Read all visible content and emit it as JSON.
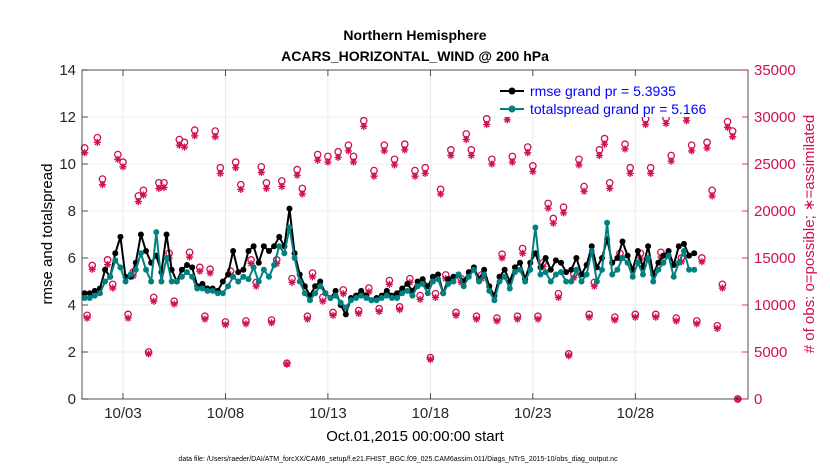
{
  "colors": {
    "rmse": "#000000",
    "spread": "#008080",
    "obs": "#d0104e",
    "legend_text": "#0000ff",
    "grid": "#e6e6e6",
    "axis": "#262626"
  },
  "chart_data": {
    "type": "line",
    "title": "Northern Hemisphere",
    "subtitle": "ACARS_HORIZONTAL_WIND @ 200 hPa",
    "xlabel": "Oct.01,2015 00:00:00 start",
    "ylabel_left": "rmse and totalspread",
    "ylabel_right": "# of obs: o=possible; ∗=assimilated",
    "footnote": "data file: /Users/raeder/DAI/ATM_forcXX/CAM6_setup/f.e21.FHIST_BGC.f09_025.CAM6assim.011/Diags_NTrS_2015-10/obs_diag_output.nc",
    "xlim": [
      0,
      32.5
    ],
    "ylim_left": [
      0,
      14
    ],
    "ylim_right": [
      0,
      35000
    ],
    "x_ticks": [
      {
        "x": 2,
        "label": "10/03"
      },
      {
        "x": 7,
        "label": "10/08"
      },
      {
        "x": 12,
        "label": "10/13"
      },
      {
        "x": 17,
        "label": "10/18"
      },
      {
        "x": 22,
        "label": "10/23"
      },
      {
        "x": 27,
        "label": "10/28"
      }
    ],
    "y_ticks_left": [
      {
        "v": 0,
        "label": "0"
      },
      {
        "v": 2,
        "label": "2"
      },
      {
        "v": 4,
        "label": "4"
      },
      {
        "v": 6,
        "label": "6"
      },
      {
        "v": 8,
        "label": "8"
      },
      {
        "v": 10,
        "label": "10"
      },
      {
        "v": 12,
        "label": "12"
      },
      {
        "v": 14,
        "label": "14"
      }
    ],
    "y_ticks_right": [
      {
        "v": 0,
        "label": "0"
      },
      {
        "v": 5000,
        "label": "5000"
      },
      {
        "v": 10000,
        "label": "10000"
      },
      {
        "v": 15000,
        "label": "15000"
      },
      {
        "v": 20000,
        "label": "20000"
      },
      {
        "v": 25000,
        "label": "25000"
      },
      {
        "v": 30000,
        "label": "30000"
      },
      {
        "v": 35000,
        "label": "35000"
      }
    ],
    "x_step_days": 0.25,
    "x_start": 0.125,
    "series": [
      {
        "name": "rmse grand pr = 5.3935",
        "axis": "left",
        "values": [
          4.5,
          4.5,
          4.6,
          4.7,
          5.5,
          5.2,
          6.2,
          6.9,
          5.2,
          5.2,
          5.8,
          7.0,
          6.3,
          5.8,
          6.1,
          5.4,
          7.0,
          5.5,
          5.0,
          5.5,
          5.7,
          5.6,
          4.8,
          4.9,
          4.7,
          4.7,
          4.6,
          5.0,
          5.3,
          6.3,
          5.4,
          5.5,
          6.3,
          6.5,
          5.8,
          6.5,
          6.3,
          6.5,
          6.9,
          6.5,
          8.1,
          6.2,
          5.3,
          4.8,
          4.4,
          4.8,
          5.0,
          4.5,
          4.3,
          4.6,
          4.0,
          3.6,
          4.3,
          4.4,
          4.6,
          4.4,
          4.2,
          4.3,
          4.4,
          4.6,
          4.4,
          4.5,
          4.7,
          4.9,
          4.6,
          5.0,
          5.1,
          4.8,
          5.2,
          5.3,
          4.5,
          5.1,
          5.2,
          5.3,
          5.0,
          5.4,
          5.6,
          5.1,
          5.5,
          4.8,
          4.4,
          5.2,
          5.5,
          5.0,
          5.6,
          5.8,
          5.1,
          5.8,
          6.2,
          5.6,
          6.0,
          5.5,
          5.9,
          5.8,
          5.4,
          5.5,
          6.0,
          5.3,
          5.7,
          6.5,
          5.6,
          6.0,
          6.8,
          5.8,
          6.0,
          6.7,
          6.1,
          5.5,
          6.3,
          5.6,
          6.5,
          5.3,
          5.8,
          6.1,
          6.3,
          5.7,
          6.5,
          6.6,
          6.1,
          6.2
        ]
      },
      {
        "name": "totalspread grand pr = 5.166",
        "axis": "left",
        "values": [
          4.3,
          4.3,
          4.4,
          4.5,
          5.0,
          5.2,
          5.9,
          5.6,
          5.0,
          5.3,
          5.5,
          6.2,
          5.5,
          5.0,
          7.1,
          5.0,
          6.0,
          5.0,
          5.0,
          5.2,
          5.4,
          5.2,
          4.7,
          4.7,
          4.6,
          4.6,
          4.5,
          4.5,
          4.8,
          5.2,
          5.0,
          5.2,
          5.1,
          5.6,
          5.0,
          5.5,
          5.2,
          5.7,
          6.5,
          6.2,
          7.3,
          6.0,
          5.0,
          4.5,
          4.2,
          4.5,
          4.8,
          4.5,
          4.3,
          4.4,
          4.1,
          3.9,
          4.2,
          4.3,
          4.4,
          4.3,
          4.2,
          4.2,
          4.3,
          4.4,
          4.3,
          4.3,
          4.5,
          4.6,
          4.4,
          4.8,
          4.9,
          4.5,
          5.0,
          5.1,
          4.5,
          4.9,
          5.0,
          5.3,
          4.8,
          5.2,
          5.5,
          5.0,
          5.3,
          4.6,
          4.2,
          5.0,
          5.2,
          4.7,
          5.4,
          5.5,
          5.0,
          5.5,
          7.3,
          5.3,
          5.4,
          5.0,
          5.3,
          5.4,
          5.0,
          5.0,
          5.5,
          5.0,
          5.3,
          6.3,
          5.0,
          5.5,
          7.5,
          5.3,
          5.5,
          6.0,
          5.8,
          5.2,
          5.8,
          5.3,
          6.0,
          5.0,
          5.5,
          5.8,
          6.1,
          5.2,
          5.8,
          6.3,
          5.5,
          5.5
        ]
      }
    ],
    "obs_points": [
      {
        "x": 0.13,
        "possible": 26700,
        "assimilated": 26200
      },
      {
        "x": 0.25,
        "possible": 8900,
        "assimilated": 8600
      },
      {
        "x": 0.5,
        "possible": 14200,
        "assimilated": 13800
      },
      {
        "x": 0.75,
        "possible": 27800,
        "assimilated": 27300
      },
      {
        "x": 1.0,
        "possible": 23400,
        "assimilated": 22800
      },
      {
        "x": 1.25,
        "possible": 14800,
        "assimilated": 14300
      },
      {
        "x": 1.5,
        "possible": 12200,
        "assimilated": 11800
      },
      {
        "x": 1.75,
        "possible": 26000,
        "assimilated": 25500
      },
      {
        "x": 2.0,
        "possible": 25200,
        "assimilated": 24700
      },
      {
        "x": 2.25,
        "possible": 9000,
        "assimilated": 8600
      },
      {
        "x": 2.5,
        "possible": 13500,
        "assimilated": 13100
      },
      {
        "x": 2.75,
        "possible": 21600,
        "assimilated": 21000
      },
      {
        "x": 3.0,
        "possible": 22200,
        "assimilated": 21700
      },
      {
        "x": 3.25,
        "possible": 5000,
        "assimilated": 4800
      },
      {
        "x": 3.5,
        "possible": 10800,
        "assimilated": 10400
      },
      {
        "x": 3.75,
        "possible": 23000,
        "assimilated": 22400
      },
      {
        "x": 4.0,
        "possible": 23000,
        "assimilated": 22500
      },
      {
        "x": 4.25,
        "possible": 15500,
        "assimilated": 15000
      },
      {
        "x": 4.5,
        "possible": 10400,
        "assimilated": 10100
      },
      {
        "x": 4.75,
        "possible": 27600,
        "assimilated": 27000
      },
      {
        "x": 5.0,
        "possible": 27300,
        "assimilated": 26800
      },
      {
        "x": 5.25,
        "possible": 15600,
        "assimilated": 15100
      },
      {
        "x": 5.5,
        "possible": 28600,
        "assimilated": 28000
      },
      {
        "x": 5.75,
        "possible": 14000,
        "assimilated": 13600
      },
      {
        "x": 6.0,
        "possible": 8800,
        "assimilated": 8500
      },
      {
        "x": 6.25,
        "possible": 13800,
        "assimilated": 13400
      },
      {
        "x": 6.5,
        "possible": 28500,
        "assimilated": 27900
      },
      {
        "x": 6.75,
        "possible": 24600,
        "assimilated": 24000
      },
      {
        "x": 7.0,
        "possible": 8200,
        "assimilated": 7900
      },
      {
        "x": 7.25,
        "possible": 13600,
        "assimilated": 13200
      },
      {
        "x": 7.5,
        "possible": 25200,
        "assimilated": 24600
      },
      {
        "x": 7.75,
        "possible": 22800,
        "assimilated": 22300
      },
      {
        "x": 8.0,
        "possible": 8300,
        "assimilated": 8000
      },
      {
        "x": 8.25,
        "possible": 14800,
        "assimilated": 14400
      },
      {
        "x": 8.5,
        "possible": 12400,
        "assimilated": 12000
      },
      {
        "x": 8.75,
        "possible": 24700,
        "assimilated": 24100
      },
      {
        "x": 9.0,
        "possible": 23000,
        "assimilated": 22400
      },
      {
        "x": 9.25,
        "possible": 8400,
        "assimilated": 8100
      },
      {
        "x": 9.5,
        "possible": 14800,
        "assimilated": 14400
      },
      {
        "x": 9.75,
        "possible": 23200,
        "assimilated": 22600
      },
      {
        "x": 10.0,
        "possible": 3800,
        "assimilated": 3700
      },
      {
        "x": 10.25,
        "possible": 12800,
        "assimilated": 12400
      },
      {
        "x": 10.5,
        "possible": 24400,
        "assimilated": 23800
      },
      {
        "x": 10.75,
        "possible": 22400,
        "assimilated": 21800
      },
      {
        "x": 11.0,
        "possible": 8800,
        "assimilated": 8500
      },
      {
        "x": 11.25,
        "possible": 13400,
        "assimilated": 13000
      },
      {
        "x": 11.5,
        "possible": 26000,
        "assimilated": 25400
      },
      {
        "x": 11.75,
        "possible": 10800,
        "assimilated": 10400
      },
      {
        "x": 12.0,
        "possible": 25800,
        "assimilated": 25200
      },
      {
        "x": 12.25,
        "possible": 9200,
        "assimilated": 8900
      },
      {
        "x": 12.5,
        "possible": 26300,
        "assimilated": 25700
      },
      {
        "x": 12.75,
        "possible": 11600,
        "assimilated": 11200
      },
      {
        "x": 13.0,
        "possible": 27000,
        "assimilated": 26400
      },
      {
        "x": 13.25,
        "possible": 25800,
        "assimilated": 25200
      },
      {
        "x": 13.5,
        "possible": 9400,
        "assimilated": 9100
      },
      {
        "x": 13.75,
        "possible": 29600,
        "assimilated": 29000
      },
      {
        "x": 14.0,
        "possible": 11800,
        "assimilated": 11400
      },
      {
        "x": 14.25,
        "possible": 24300,
        "assimilated": 23700
      },
      {
        "x": 14.5,
        "possible": 9600,
        "assimilated": 9300
      },
      {
        "x": 14.75,
        "possible": 27000,
        "assimilated": 26400
      },
      {
        "x": 15.0,
        "possible": 12600,
        "assimilated": 12200
      },
      {
        "x": 15.25,
        "possible": 25500,
        "assimilated": 24900
      },
      {
        "x": 15.5,
        "possible": 9800,
        "assimilated": 9500
      },
      {
        "x": 15.75,
        "possible": 27100,
        "assimilated": 26500
      },
      {
        "x": 16.0,
        "possible": 12800,
        "assimilated": 12400
      },
      {
        "x": 16.25,
        "possible": 24300,
        "assimilated": 23700
      },
      {
        "x": 16.5,
        "possible": 11000,
        "assimilated": 10600
      },
      {
        "x": 16.75,
        "possible": 24600,
        "assimilated": 24000
      },
      {
        "x": 17.0,
        "possible": 4400,
        "assimilated": 4200
      },
      {
        "x": 17.25,
        "possible": 11200,
        "assimilated": 10800
      },
      {
        "x": 17.5,
        "possible": 22300,
        "assimilated": 21800
      },
      {
        "x": 17.75,
        "possible": 13200,
        "assimilated": 12800
      },
      {
        "x": 18.0,
        "possible": 26500,
        "assimilated": 25900
      },
      {
        "x": 18.25,
        "possible": 9200,
        "assimilated": 8900
      },
      {
        "x": 18.5,
        "possible": 12800,
        "assimilated": 12400
      },
      {
        "x": 18.75,
        "possible": 28200,
        "assimilated": 27600
      },
      {
        "x": 19.0,
        "possible": 26500,
        "assimilated": 25900
      },
      {
        "x": 19.25,
        "possible": 8800,
        "assimilated": 8500
      },
      {
        "x": 19.5,
        "possible": 13200,
        "assimilated": 12800
      },
      {
        "x": 19.75,
        "possible": 29800,
        "assimilated": 29200
      },
      {
        "x": 20.0,
        "possible": 25500,
        "assimilated": 25000
      },
      {
        "x": 20.25,
        "possible": 8600,
        "assimilated": 8300
      },
      {
        "x": 20.5,
        "possible": 15400,
        "assimilated": 15000
      },
      {
        "x": 20.75,
        "possible": 30300,
        "assimilated": 29700
      },
      {
        "x": 21.0,
        "possible": 25800,
        "assimilated": 25200
      },
      {
        "x": 21.25,
        "possible": 8800,
        "assimilated": 8500
      },
      {
        "x": 21.5,
        "possible": 16000,
        "assimilated": 15500
      },
      {
        "x": 21.75,
        "possible": 26800,
        "assimilated": 26200
      },
      {
        "x": 22.0,
        "possible": 24800,
        "assimilated": 24200
      },
      {
        "x": 22.25,
        "possible": 8800,
        "assimilated": 8500
      },
      {
        "x": 22.5,
        "possible": 14500,
        "assimilated": 14100
      },
      {
        "x": 22.75,
        "possible": 20800,
        "assimilated": 20300
      },
      {
        "x": 23.0,
        "possible": 19200,
        "assimilated": 18700
      },
      {
        "x": 23.25,
        "possible": 11200,
        "assimilated": 10800
      },
      {
        "x": 23.5,
        "possible": 20400,
        "assimilated": 19800
      },
      {
        "x": 23.75,
        "possible": 4800,
        "assimilated": 4600
      },
      {
        "x": 24.0,
        "possible": 13300,
        "assimilated": 12900
      },
      {
        "x": 24.25,
        "possible": 25500,
        "assimilated": 24900
      },
      {
        "x": 24.5,
        "possible": 22600,
        "assimilated": 22100
      },
      {
        "x": 24.75,
        "possible": 9000,
        "assimilated": 8700
      },
      {
        "x": 25.0,
        "possible": 12400,
        "assimilated": 12000
      },
      {
        "x": 25.25,
        "possible": 26500,
        "assimilated": 25900
      },
      {
        "x": 25.5,
        "possible": 27700,
        "assimilated": 27100
      },
      {
        "x": 25.75,
        "possible": 23000,
        "assimilated": 22400
      },
      {
        "x": 26.0,
        "possible": 8700,
        "assimilated": 8400
      },
      {
        "x": 26.25,
        "possible": 15500,
        "assimilated": 15000
      },
      {
        "x": 26.5,
        "possible": 27100,
        "assimilated": 26600
      },
      {
        "x": 26.75,
        "possible": 24600,
        "assimilated": 24000
      },
      {
        "x": 27.0,
        "possible": 9000,
        "assimilated": 8700
      },
      {
        "x": 27.25,
        "possible": 15500,
        "assimilated": 15000
      },
      {
        "x": 27.5,
        "possible": 29800,
        "assimilated": 29200
      },
      {
        "x": 27.75,
        "possible": 24600,
        "assimilated": 24000
      },
      {
        "x": 28.0,
        "possible": 9000,
        "assimilated": 8700
      },
      {
        "x": 28.25,
        "possible": 15600,
        "assimilated": 15100
      },
      {
        "x": 28.5,
        "possible": 29900,
        "assimilated": 29300
      },
      {
        "x": 28.75,
        "possible": 25900,
        "assimilated": 25300
      },
      {
        "x": 29.0,
        "possible": 8600,
        "assimilated": 8300
      },
      {
        "x": 29.25,
        "possible": 15000,
        "assimilated": 14600
      },
      {
        "x": 29.5,
        "possible": 30200,
        "assimilated": 29600
      },
      {
        "x": 29.75,
        "possible": 27000,
        "assimilated": 26400
      },
      {
        "x": 30.0,
        "possible": 8300,
        "assimilated": 8000
      },
      {
        "x": 30.25,
        "possible": 15000,
        "assimilated": 14600
      },
      {
        "x": 30.5,
        "possible": 27300,
        "assimilated": 26700
      },
      {
        "x": 30.75,
        "possible": 22200,
        "assimilated": 21600
      },
      {
        "x": 31.0,
        "possible": 7800,
        "assimilated": 7500
      },
      {
        "x": 31.25,
        "possible": 12200,
        "assimilated": 11800
      },
      {
        "x": 31.5,
        "possible": 29500,
        "assimilated": 28900
      },
      {
        "x": 31.75,
        "possible": 28500,
        "assimilated": 27900
      },
      {
        "x": 32.0,
        "possible": 0,
        "assimilated": 0
      }
    ]
  },
  "legend": {
    "rmse_label": "rmse grand pr = 5.3935",
    "spread_label": "totalspread grand pr = 5.166"
  }
}
